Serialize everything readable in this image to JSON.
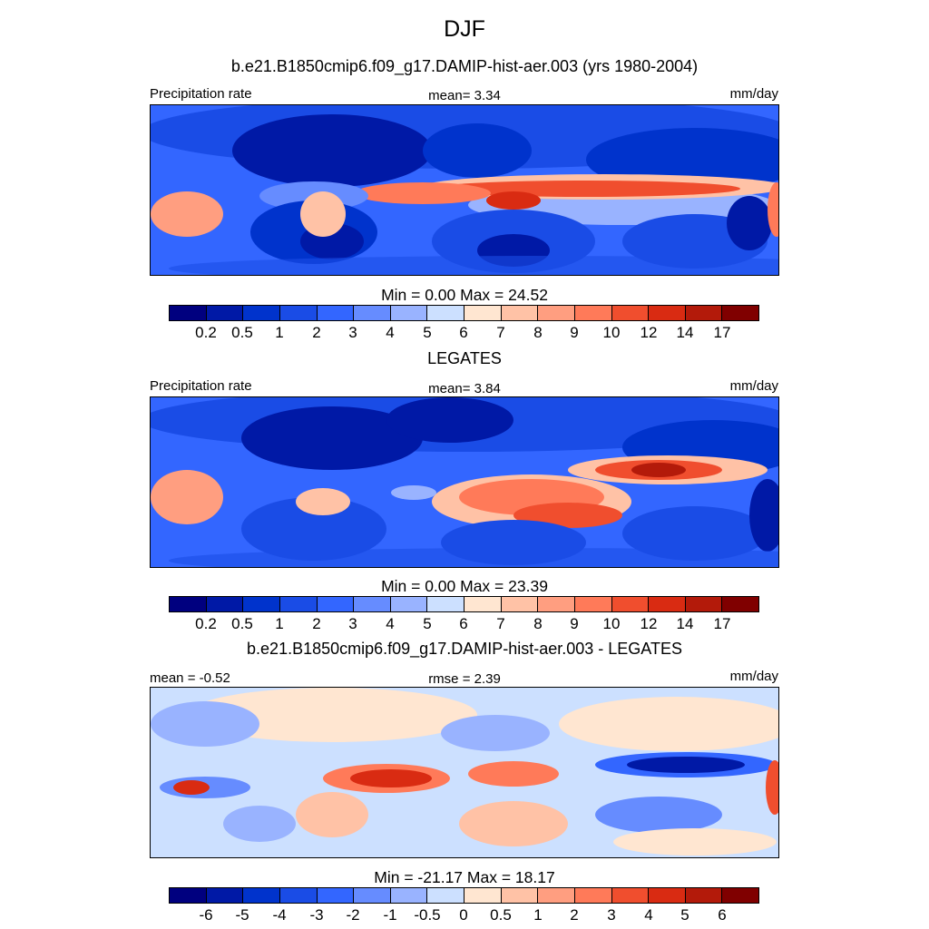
{
  "page_title": "DJF",
  "panels": [
    {
      "title": "b.e21.B1850cmip6.f09_g17.DAMIP-hist-aer.003 (yrs 1980-2004)",
      "left_label": "Precipitation rate",
      "center_label": "mean=   3.34",
      "right_label": "mm/day",
      "minmax": "Min =   0.00 Max =  24.52"
    },
    {
      "title": "LEGATES",
      "left_label": "Precipitation rate",
      "center_label": "mean=   3.84",
      "right_label": "mm/day",
      "minmax": "Min =   0.00 Max =  23.39"
    },
    {
      "title": "b.e21.B1850cmip6.f09_g17.DAMIP-hist-aer.003 - LEGATES",
      "left_label": "mean =  -0.52",
      "center_label": "rmse =   2.39",
      "right_label": "mm/day",
      "minmax": "Min = -21.17 Max =  18.17"
    }
  ],
  "chart_data": [
    {
      "type": "heatmap",
      "variable": "Precipitation rate",
      "units": "mm/day",
      "mean": 3.34,
      "min": 0.0,
      "max": 24.52,
      "colorbar_levels": [
        "0.2",
        "0.5",
        "1",
        "2",
        "3",
        "4",
        "5",
        "6",
        "7",
        "8",
        "9",
        "10",
        "12",
        "14",
        "17"
      ]
    },
    {
      "type": "heatmap",
      "variable": "Precipitation rate",
      "units": "mm/day",
      "mean": 3.84,
      "min": 0.0,
      "max": 23.39,
      "colorbar_levels": [
        "0.2",
        "0.5",
        "1",
        "2",
        "3",
        "4",
        "5",
        "6",
        "7",
        "8",
        "9",
        "10",
        "12",
        "14",
        "17"
      ]
    },
    {
      "type": "heatmap",
      "units": "mm/day",
      "mean": -0.52,
      "rmse": 2.39,
      "min": -21.17,
      "max": 18.17,
      "colorbar_levels": [
        "-6",
        "-5",
        "-4",
        "-3",
        "-2",
        "-1",
        "-0.5",
        "0",
        "0.5",
        "1",
        "2",
        "3",
        "4",
        "5",
        "6"
      ]
    }
  ],
  "colors": {
    "palette": [
      "#00007f",
      "#0019a6",
      "#0033cc",
      "#1a4ce6",
      "#3366ff",
      "#668cff",
      "#99b3ff",
      "#cce0ff",
      "#ffe6d1",
      "#ffc2a6",
      "#ff9e80",
      "#ff7a59",
      "#f04e2e",
      "#d92b12",
      "#b31a0a",
      "#800000"
    ]
  }
}
